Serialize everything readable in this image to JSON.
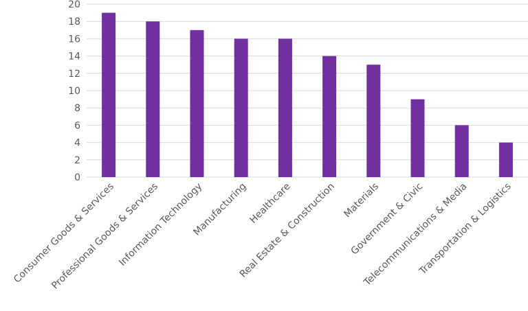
{
  "colors": {
    "bar": "#7030a0",
    "gridline": "#d9d9d9",
    "text": "#595959",
    "background": "#ffffff"
  },
  "chart_data": {
    "type": "bar",
    "title": "",
    "xlabel": "",
    "ylabel": "",
    "ylim": [
      0,
      20
    ],
    "ytick_step": 2,
    "yticks": [
      "0",
      "2",
      "4",
      "6",
      "8",
      "10",
      "12",
      "14",
      "16",
      "18",
      "20"
    ],
    "grid": true,
    "legend": "none",
    "categories": [
      "Consumer Goods & Services",
      "Professional Goods & Services",
      "Information Technology",
      "Manufacturing",
      "Healthcare",
      "Real Estate & Construction",
      "Materials",
      "Government & Civic",
      "Telecommunications & Media",
      "Transportation & Logistics"
    ],
    "values": [
      19,
      18,
      17,
      16,
      16,
      14,
      13,
      9,
      6,
      4
    ]
  }
}
